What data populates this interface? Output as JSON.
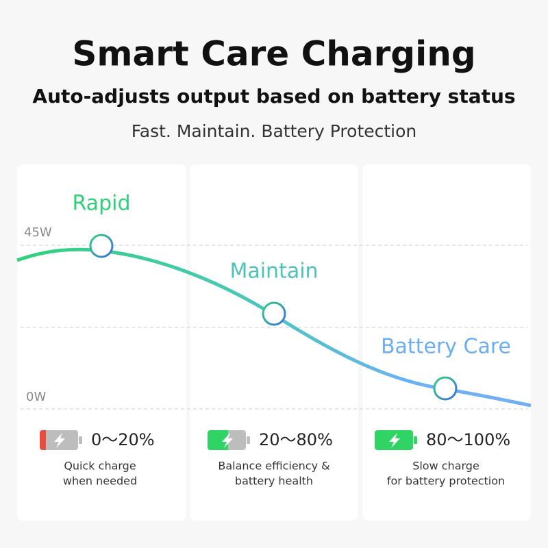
{
  "header": {
    "title": "Smart Care Charging",
    "subtitle": "Auto-adjusts output based on battery status",
    "tagline": "Fast. Maintain. Battery Protection"
  },
  "axis": {
    "max_label": "45W",
    "min_label": "0W"
  },
  "stages": [
    {
      "name": "Rapid",
      "range": "0～20%",
      "description": [
        "Quick charge",
        "when needed"
      ]
    },
    {
      "name": "Maintain",
      "range": "20～80%",
      "description": [
        "Balance efficiency &",
        "battery health"
      ]
    },
    {
      "name": "Battery Care",
      "range": "80～100%",
      "description": [
        "Slow charge",
        "for battery protection"
      ]
    }
  ]
}
